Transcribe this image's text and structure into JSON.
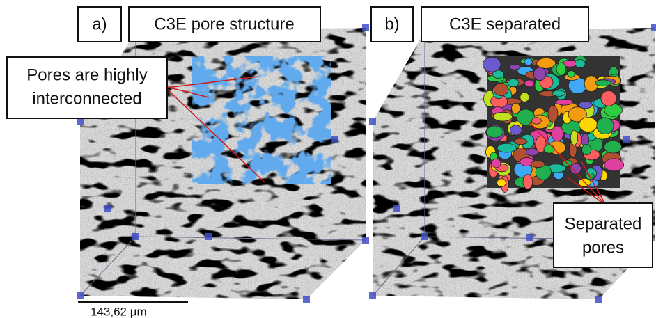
{
  "panels": [
    {
      "letter": "a)",
      "title": "C3E pore structure"
    },
    {
      "letter": "b)",
      "title": "C3E separated"
    }
  ],
  "callouts": [
    {
      "lines": [
        "Pores are highly",
        "interconnected"
      ]
    },
    {
      "lines": [
        "Separated",
        "pores"
      ]
    }
  ],
  "scale_bar": {
    "label": "143,62 µm"
  }
}
